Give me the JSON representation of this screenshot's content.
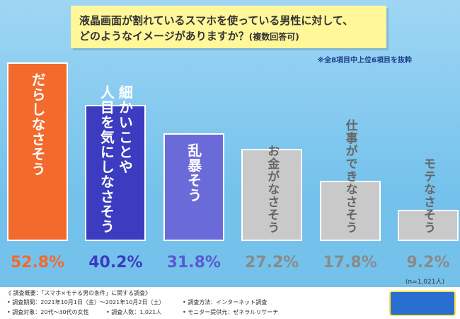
{
  "chart_data": {
    "type": "bar",
    "title": [
      "液晶画面が割れているスマホを使っている男性に対して、",
      "どのようなイメージがありますか？"
    ],
    "subtitle": "(複数回答可)",
    "note": "※全8項目中上位6項目を抜粋",
    "categories": [
      "だらしなさそう",
      "細かいことや\n人目を気にしなさそう",
      "乱暴そう",
      "お金がなさそう",
      "仕事ができなさそう",
      "モテなさそう"
    ],
    "values": [
      52.8,
      40.2,
      31.8,
      27.2,
      17.8,
      9.2
    ],
    "value_labels": [
      "52.8%",
      "40.2%",
      "31.8%",
      "27.2%",
      "17.8%",
      "9.2%"
    ],
    "colors": [
      "#f26a2c",
      "#3b3cbf",
      "#6a6ad8",
      "#c9c9c9",
      "#c9c9c9",
      "#c9c9c9"
    ],
    "label_colors": [
      "#f26a2c",
      "#3b3cbf",
      "#5a5ad0",
      "#8a8a8a",
      "#8a8a8a",
      "#8a8a8a"
    ],
    "sample_size": "(n=1,021人)",
    "survey": {
      "heading": "《 調査概要：「スマホ×モテる男の条件」に関する調査》",
      "items": [
        "• 調査期間：2021年10月1日（金）〜2021年10月2日（土）",
        "• 調査方法：インターネット調査",
        "• 調査対象：20代〜30代の女性",
        "• 調査人数：1,021人",
        "• モニター提供元：ゼネラルリサーチ"
      ]
    }
  }
}
